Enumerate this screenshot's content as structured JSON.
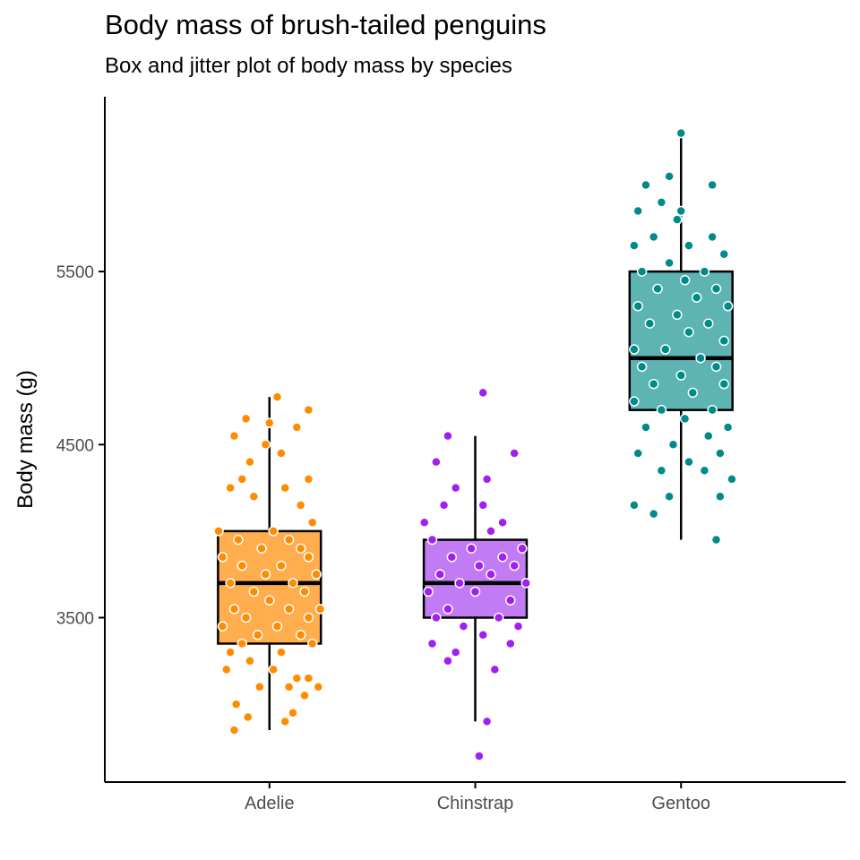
{
  "chart_data": {
    "type": "box",
    "title": "Body mass of brush-tailed penguins",
    "subtitle": "Box and jitter plot of body mass by species",
    "xlabel": "",
    "ylabel": "Body mass (g)",
    "categories": [
      "Adelie",
      "Chinstrap",
      "Gentoo"
    ],
    "y_ticks": [
      3500,
      4500,
      5500
    ],
    "ylim": [
      2550,
      6510
    ],
    "grid": false,
    "legend": "none",
    "series": [
      {
        "category": "Adelie",
        "color": "#FF8C00",
        "fill": "#FFAD4D",
        "box": {
          "whisker_low": 2850,
          "q1": 3350,
          "median": 3700,
          "q3": 4000,
          "whisker_high": 4775
        },
        "points": [
          [
            -0.18,
            2850
          ],
          [
            0.08,
            2900
          ],
          [
            -0.11,
            2925
          ],
          [
            -0.17,
            3000
          ],
          [
            0.12,
            2950
          ],
          [
            0.18,
            3050
          ],
          [
            -0.05,
            3100
          ],
          [
            0.1,
            3100
          ],
          [
            0.2,
            3150
          ],
          [
            0.25,
            3100
          ],
          [
            -0.22,
            3200
          ],
          [
            0.02,
            3200
          ],
          [
            0.14,
            3150
          ],
          [
            -0.1,
            3250
          ],
          [
            -0.2,
            3300
          ],
          [
            0.06,
            3300
          ],
          [
            -0.14,
            3350
          ],
          [
            0.22,
            3350
          ],
          [
            -0.06,
            3400
          ],
          [
            0.16,
            3400
          ],
          [
            -0.24,
            3450
          ],
          [
            0.04,
            3450
          ],
          [
            -0.12,
            3500
          ],
          [
            0.2,
            3500
          ],
          [
            0.26,
            3550
          ],
          [
            -0.18,
            3550
          ],
          [
            0.1,
            3550
          ],
          [
            0.0,
            3600
          ],
          [
            -0.08,
            3650
          ],
          [
            0.18,
            3650
          ],
          [
            -0.2,
            3700
          ],
          [
            0.12,
            3700
          ],
          [
            -0.02,
            3750
          ],
          [
            0.24,
            3750
          ],
          [
            -0.14,
            3800
          ],
          [
            0.06,
            3800
          ],
          [
            0.2,
            3850
          ],
          [
            -0.24,
            3850
          ],
          [
            -0.04,
            3900
          ],
          [
            0.16,
            3900
          ],
          [
            0.1,
            3950
          ],
          [
            -0.16,
            3950
          ],
          [
            0.02,
            4000
          ],
          [
            -0.26,
            4000
          ],
          [
            0.22,
            4050
          ],
          [
            0.16,
            4150
          ],
          [
            -0.08,
            4200
          ],
          [
            -0.2,
            4250
          ],
          [
            -0.14,
            4300
          ],
          [
            0.08,
            4250
          ],
          [
            0.2,
            4300
          ],
          [
            -0.1,
            4400
          ],
          [
            0.06,
            4450
          ],
          [
            -0.02,
            4500
          ],
          [
            -0.18,
            4550
          ],
          [
            0.14,
            4600
          ],
          [
            0.0,
            4625
          ],
          [
            -0.12,
            4650
          ],
          [
            0.2,
            4700
          ],
          [
            0.04,
            4775
          ]
        ]
      },
      {
        "category": "Chinstrap",
        "color": "#A020F0",
        "fill": "#C17BF4",
        "box": {
          "whisker_low": 2900,
          "q1": 3500,
          "median": 3700,
          "q3": 3950,
          "whisker_high": 4550
        },
        "points": [
          [
            0.02,
            2700
          ],
          [
            0.06,
            2900
          ],
          [
            0.1,
            3200
          ],
          [
            -0.14,
            3250
          ],
          [
            -0.1,
            3300
          ],
          [
            0.18,
            3350
          ],
          [
            -0.22,
            3350
          ],
          [
            0.04,
            3400
          ],
          [
            -0.06,
            3450
          ],
          [
            0.22,
            3450
          ],
          [
            -0.2,
            3500
          ],
          [
            0.12,
            3500
          ],
          [
            -0.14,
            3550
          ],
          [
            0.18,
            3600
          ],
          [
            0.0,
            3650
          ],
          [
            -0.24,
            3650
          ],
          [
            0.26,
            3700
          ],
          [
            -0.08,
            3700
          ],
          [
            0.08,
            3750
          ],
          [
            -0.18,
            3750
          ],
          [
            0.2,
            3800
          ],
          [
            0.02,
            3800
          ],
          [
            -0.12,
            3850
          ],
          [
            0.14,
            3850
          ],
          [
            -0.02,
            3900
          ],
          [
            0.24,
            3900
          ],
          [
            -0.22,
            3950
          ],
          [
            0.08,
            4000
          ],
          [
            -0.26,
            4050
          ],
          [
            0.14,
            4050
          ],
          [
            -0.16,
            4150
          ],
          [
            0.04,
            4150
          ],
          [
            -0.1,
            4250
          ],
          [
            0.06,
            4300
          ],
          [
            -0.2,
            4400
          ],
          [
            0.2,
            4450
          ],
          [
            -0.14,
            4550
          ],
          [
            0.04,
            4800
          ]
        ]
      },
      {
        "category": "Gentoo",
        "color": "#008B8B",
        "fill": "#5EB3B3",
        "box": {
          "whisker_low": 3950,
          "q1": 4700,
          "median": 5000,
          "q3": 5500,
          "whisker_high": 6300
        },
        "points": [
          [
            0.18,
            3950
          ],
          [
            -0.14,
            4100
          ],
          [
            -0.24,
            4150
          ],
          [
            -0.06,
            4200
          ],
          [
            0.2,
            4200
          ],
          [
            0.26,
            4300
          ],
          [
            -0.1,
            4350
          ],
          [
            0.12,
            4350
          ],
          [
            0.04,
            4400
          ],
          [
            0.2,
            4450
          ],
          [
            -0.22,
            4450
          ],
          [
            -0.04,
            4500
          ],
          [
            0.14,
            4550
          ],
          [
            0.24,
            4600
          ],
          [
            -0.18,
            4600
          ],
          [
            0.02,
            4650
          ],
          [
            -0.1,
            4700
          ],
          [
            0.16,
            4700
          ],
          [
            -0.24,
            4750
          ],
          [
            0.06,
            4800
          ],
          [
            0.22,
            4850
          ],
          [
            -0.14,
            4850
          ],
          [
            0.0,
            4900
          ],
          [
            -0.2,
            4950
          ],
          [
            0.18,
            4950
          ],
          [
            0.1,
            5000
          ],
          [
            -0.08,
            5050
          ],
          [
            -0.24,
            5050
          ],
          [
            0.22,
            5100
          ],
          [
            0.04,
            5150
          ],
          [
            -0.16,
            5200
          ],
          [
            0.14,
            5200
          ],
          [
            -0.02,
            5250
          ],
          [
            0.24,
            5300
          ],
          [
            -0.22,
            5300
          ],
          [
            0.08,
            5350
          ],
          [
            -0.12,
            5400
          ],
          [
            0.18,
            5400
          ],
          [
            0.02,
            5450
          ],
          [
            -0.2,
            5500
          ],
          [
            0.12,
            5500
          ],
          [
            -0.06,
            5550
          ],
          [
            0.22,
            5600
          ],
          [
            -0.24,
            5650
          ],
          [
            0.04,
            5650
          ],
          [
            -0.14,
            5700
          ],
          [
            0.16,
            5700
          ],
          [
            -0.02,
            5800
          ],
          [
            -0.22,
            5850
          ],
          [
            0.0,
            5850
          ],
          [
            -0.1,
            5900
          ],
          [
            0.16,
            6000
          ],
          [
            -0.18,
            6000
          ],
          [
            -0.06,
            6050
          ],
          [
            0.0,
            6300
          ]
        ]
      }
    ]
  }
}
